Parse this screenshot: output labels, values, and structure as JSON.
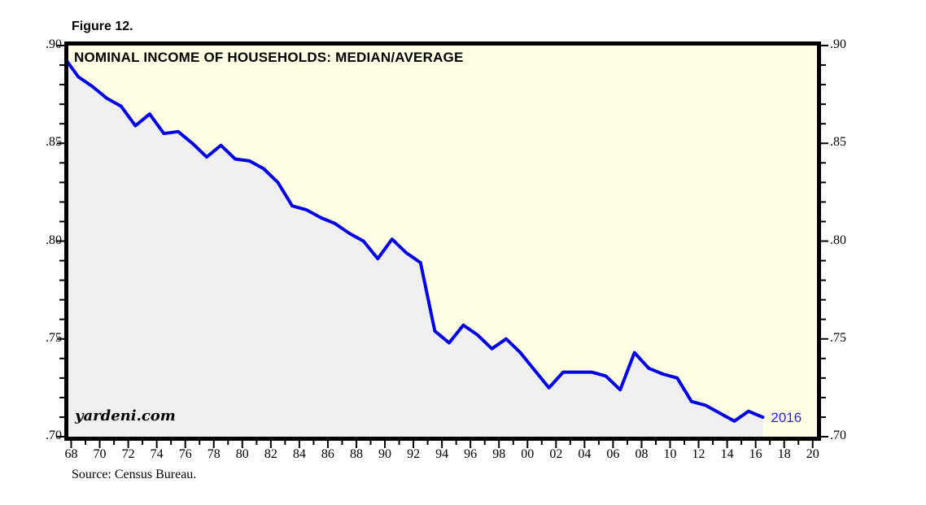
{
  "figure_label": "Figure 12.",
  "source_note": "Source: Census Bureau.",
  "watermark": "yardeni.com",
  "chart_data": {
    "type": "line",
    "title": "NOMINAL INCOME OF HOUSEHOLDS: MEDIAN/AVERAGE",
    "end_label": "2016",
    "grid": false,
    "legend_position": "none",
    "xlim": [
      1967.8,
      2020.3
    ],
    "ylim": [
      0.7,
      0.9
    ],
    "years": [
      1967,
      1968,
      1969,
      1970,
      1971,
      1972,
      1973,
      1974,
      1975,
      1976,
      1977,
      1978,
      1979,
      1980,
      1981,
      1982,
      1983,
      1984,
      1985,
      1986,
      1987,
      1988,
      1989,
      1990,
      1991,
      1992,
      1993,
      1994,
      1995,
      1996,
      1997,
      1998,
      1999,
      2000,
      2001,
      2002,
      2003,
      2004,
      2005,
      2006,
      2007,
      2008,
      2009,
      2010,
      2011,
      2012,
      2013,
      2014,
      2015,
      2016
    ],
    "values": [
      0.894,
      0.884,
      0.879,
      0.873,
      0.869,
      0.859,
      0.865,
      0.855,
      0.856,
      0.85,
      0.843,
      0.849,
      0.842,
      0.841,
      0.837,
      0.83,
      0.818,
      0.816,
      0.812,
      0.809,
      0.804,
      0.8,
      0.791,
      0.801,
      0.794,
      0.789,
      0.754,
      0.748,
      0.757,
      0.752,
      0.745,
      0.75,
      0.743,
      0.734,
      0.725,
      0.733,
      0.733,
      0.733,
      0.731,
      0.724,
      0.743,
      0.735,
      0.732,
      0.73,
      0.718,
      0.716,
      0.712,
      0.708,
      0.713,
      0.71
    ],
    "x_tick_years": [
      1968,
      1970,
      1972,
      1974,
      1976,
      1978,
      1980,
      1982,
      1984,
      1986,
      1988,
      1990,
      1992,
      1994,
      1996,
      1998,
      2000,
      2002,
      2004,
      2006,
      2008,
      2010,
      2012,
      2014,
      2016,
      2018,
      2020
    ],
    "x_tick_labels": [
      "68",
      "70",
      "72",
      "74",
      "76",
      "78",
      "80",
      "82",
      "84",
      "86",
      "88",
      "90",
      "92",
      "94",
      "96",
      "98",
      "00",
      "02",
      "04",
      "06",
      "08",
      "10",
      "12",
      "14",
      "16",
      "18",
      "20"
    ],
    "y_tick_values": [
      0.9,
      0.85,
      0.8,
      0.75,
      0.7
    ],
    "y_tick_labels": [
      ".90",
      ".85",
      ".80",
      ".75",
      ".70"
    ],
    "y_minor_step": 0.01,
    "colors": {
      "line": "#0000EB",
      "area": "#EFEFEF",
      "plot_bg": "#FFFFE6",
      "border": "#000000",
      "tick": "#000000",
      "annotation": "#2828D2"
    }
  }
}
